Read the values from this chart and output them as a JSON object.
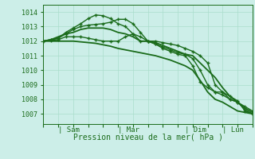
{
  "bg_color": "#cceee8",
  "grid_color": "#aaddcc",
  "line_color": "#1a6b1a",
  "marker_color": "#1a6b1a",
  "xlabel": "Pression niveau de la mer( hPa )",
  "ylim": [
    1006.3,
    1014.5
  ],
  "xlim": [
    0,
    168
  ],
  "yticks": [
    1007,
    1008,
    1009,
    1010,
    1011,
    1012,
    1013,
    1014
  ],
  "xtick_positions": [
    12,
    60,
    114,
    144
  ],
  "xtick_labels": [
    "Sam",
    "Mar",
    "Dim",
    "Lun"
  ],
  "series": [
    {
      "x": [
        0,
        6,
        12,
        18,
        24,
        30,
        36,
        42,
        48,
        54,
        60,
        66,
        72,
        78,
        84,
        90,
        96,
        102,
        108,
        114,
        120,
        126,
        132,
        138,
        144,
        150,
        156,
        162,
        168
      ],
      "y": [
        1012.0,
        1012.1,
        1012.2,
        1012.6,
        1012.9,
        1013.2,
        1013.55,
        1013.8,
        1013.75,
        1013.55,
        1013.2,
        1013.0,
        1012.5,
        1012.0,
        1012.0,
        1011.8,
        1011.5,
        1011.3,
        1011.1,
        1011.0,
        1010.3,
        1009.2,
        1008.8,
        1008.5,
        1008.5,
        1008.2,
        1007.9,
        1007.2,
        1007.0
      ],
      "marker": true,
      "linewidth": 1.0
    },
    {
      "x": [
        0,
        6,
        12,
        18,
        24,
        30,
        36,
        42,
        48,
        54,
        60,
        66,
        72,
        78,
        84,
        90,
        96,
        102,
        108,
        114,
        120,
        126,
        132,
        138,
        144,
        150,
        156,
        162,
        168
      ],
      "y": [
        1012.0,
        1012.1,
        1012.3,
        1012.5,
        1012.6,
        1012.8,
        1012.9,
        1012.9,
        1012.9,
        1012.8,
        1012.6,
        1012.5,
        1012.3,
        1012.0,
        1012.0,
        1011.9,
        1011.7,
        1011.5,
        1011.3,
        1011.1,
        1011.0,
        1010.5,
        1010.0,
        1009.5,
        1008.8,
        1008.2,
        1007.8,
        1007.4,
        1007.1
      ],
      "marker": false,
      "linewidth": 1.3
    },
    {
      "x": [
        0,
        6,
        12,
        18,
        24,
        30,
        36,
        42,
        48,
        54,
        60,
        66,
        72,
        78,
        84,
        90,
        96,
        102,
        108,
        114,
        120,
        126,
        132,
        138,
        144,
        150,
        156,
        162,
        168
      ],
      "y": [
        1012.0,
        1012.0,
        1012.0,
        1012.0,
        1012.0,
        1011.95,
        1011.9,
        1011.85,
        1011.75,
        1011.65,
        1011.5,
        1011.4,
        1011.3,
        1011.2,
        1011.1,
        1011.0,
        1010.85,
        1010.7,
        1010.5,
        1010.3,
        1010.0,
        1009.3,
        1008.5,
        1008.0,
        1007.8,
        1007.5,
        1007.2,
        1007.1,
        1007.0
      ],
      "marker": false,
      "linewidth": 1.3
    },
    {
      "x": [
        0,
        6,
        12,
        18,
        24,
        30,
        36,
        42,
        48,
        54,
        60,
        66,
        72,
        78,
        84,
        90,
        96,
        102,
        108,
        114,
        120,
        126,
        132,
        138,
        144,
        150,
        156,
        162,
        168
      ],
      "y": [
        1012.0,
        1012.05,
        1012.1,
        1012.3,
        1012.3,
        1012.3,
        1012.2,
        1012.1,
        1012.0,
        1012.0,
        1012.0,
        1012.3,
        1012.5,
        1012.3,
        1012.0,
        1012.0,
        1011.9,
        1011.8,
        1011.7,
        1011.5,
        1011.3,
        1011.0,
        1010.5,
        1009.0,
        1008.5,
        1008.0,
        1007.8,
        1007.3,
        1007.0
      ],
      "marker": true,
      "linewidth": 1.0
    },
    {
      "x": [
        0,
        6,
        12,
        18,
        24,
        30,
        36,
        42,
        48,
        54,
        60,
        66,
        72,
        78,
        84,
        90,
        96,
        102,
        108,
        114,
        120,
        126,
        132,
        138,
        144,
        150,
        156,
        162,
        168
      ],
      "y": [
        1012.0,
        1012.1,
        1012.2,
        1012.5,
        1012.8,
        1013.0,
        1013.1,
        1013.15,
        1013.2,
        1013.3,
        1013.5,
        1013.5,
        1013.2,
        1012.6,
        1012.0,
        1011.8,
        1011.6,
        1011.4,
        1011.2,
        1011.1,
        1010.8,
        1010.0,
        1009.0,
        1008.5,
        1008.3,
        1008.0,
        1007.8,
        1007.5,
        1007.2
      ],
      "marker": true,
      "linewidth": 1.0
    }
  ]
}
